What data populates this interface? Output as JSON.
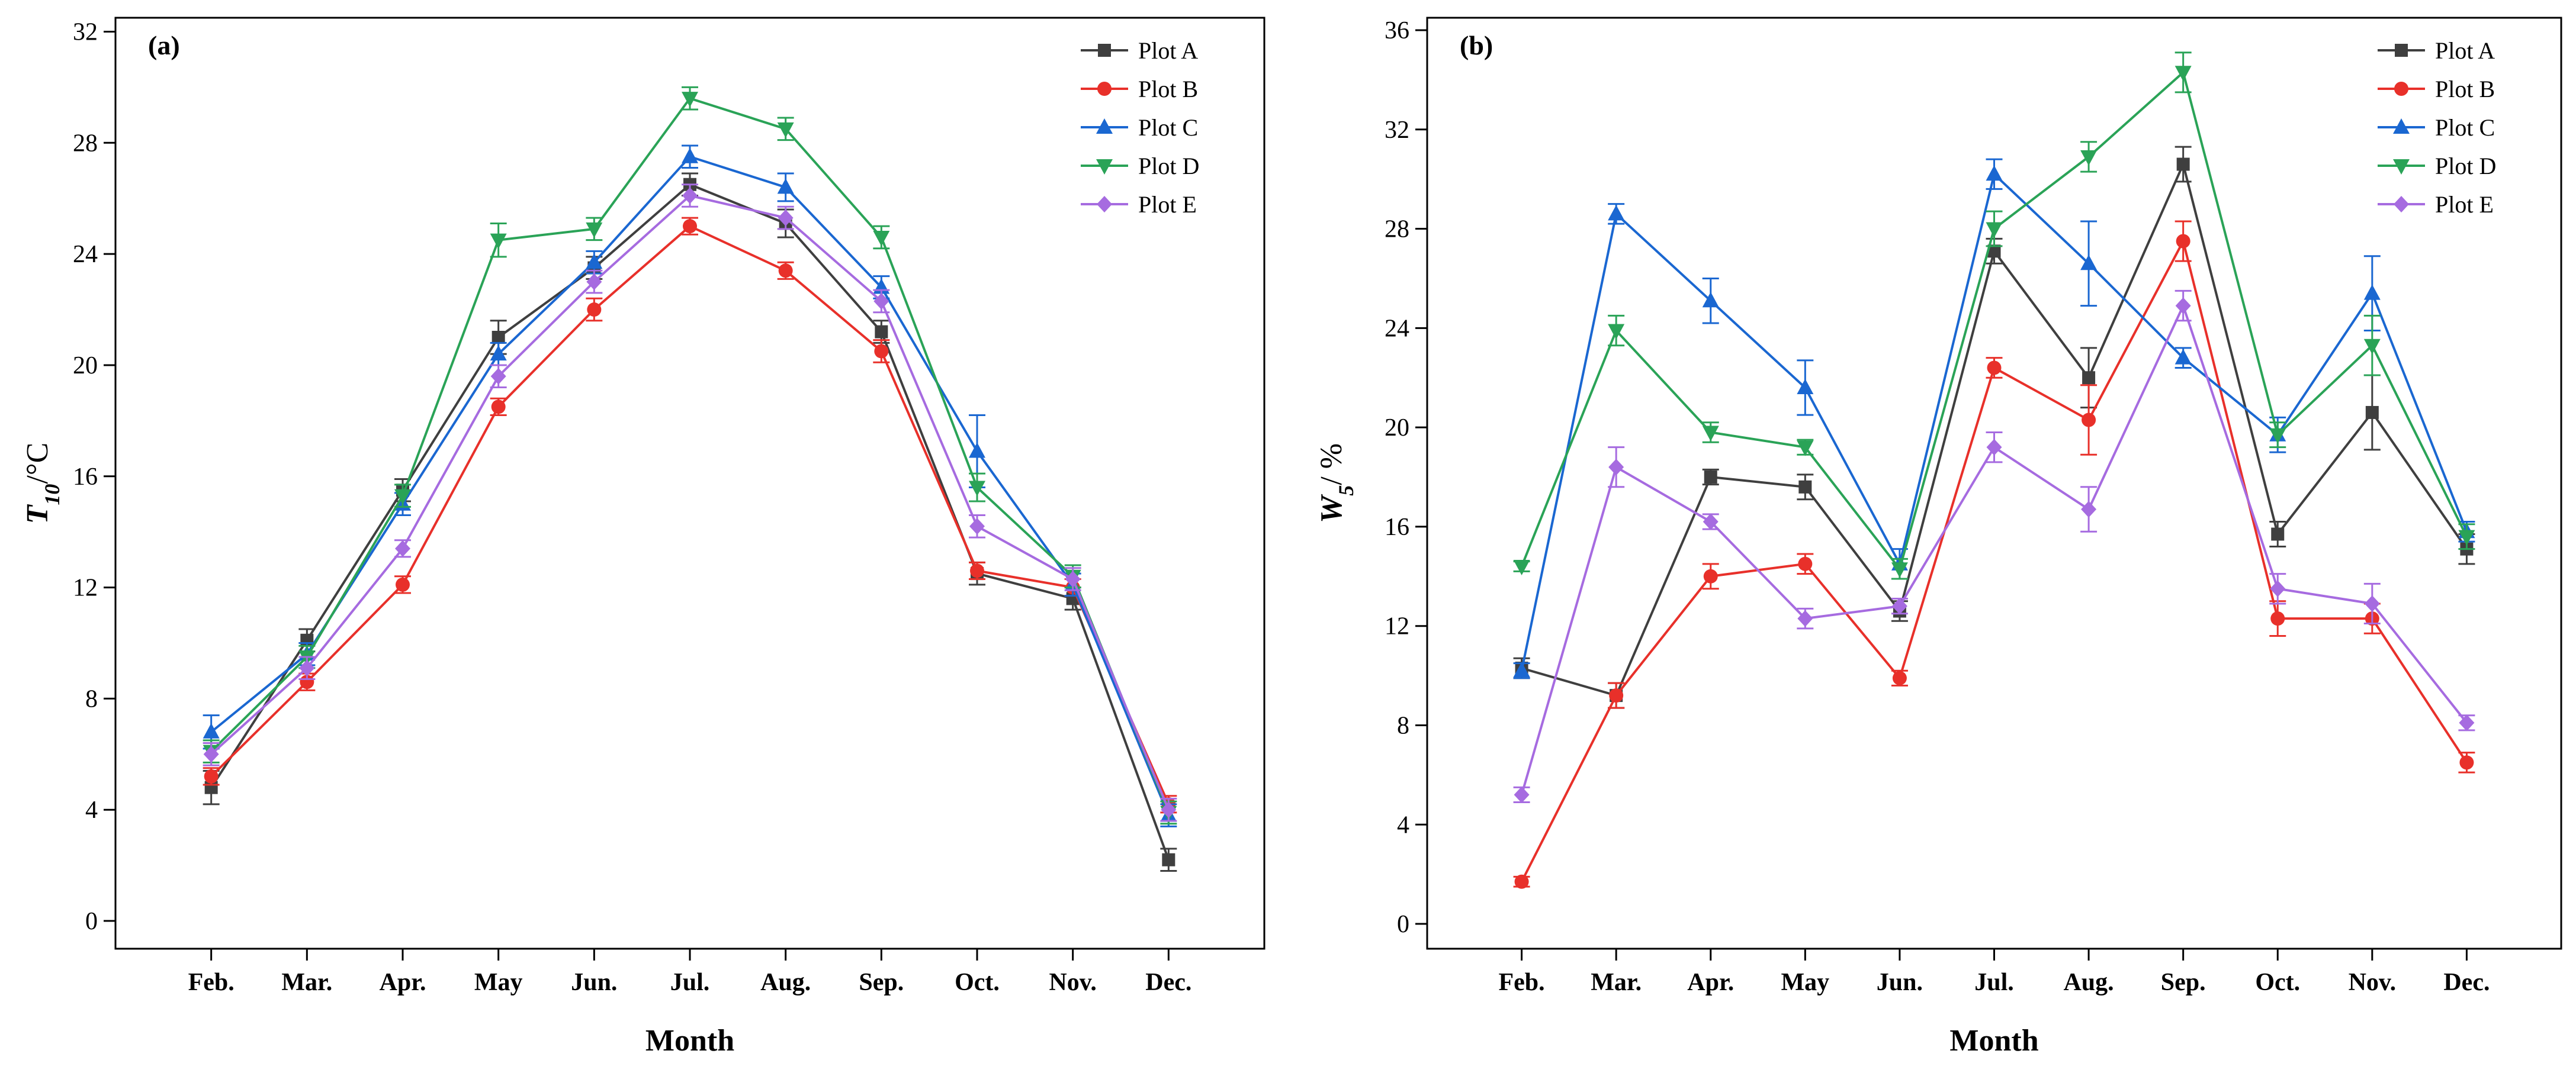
{
  "chart_data": [
    {
      "type": "line",
      "panel_label": "(a)",
      "xlabel": "Month",
      "ylabel_main": "T",
      "ylabel_sub": "10",
      "ylabel_unit": "/°C",
      "ylim": [
        -1,
        32.5
      ],
      "yticks": [
        "0",
        "4",
        "8",
        "12",
        "16",
        "20",
        "24",
        "28",
        "32"
      ],
      "categories": [
        "Feb.",
        "Mar.",
        "Apr.",
        "May",
        "Jun.",
        "Jul.",
        "Aug.",
        "Sep.",
        "Oct.",
        "Nov.",
        "Dec."
      ],
      "legend_position": "top-right",
      "series": [
        {
          "name": "Plot A",
          "color": "#3f3f3f",
          "marker": "square",
          "values": [
            4.8,
            10.1,
            15.5,
            21.0,
            23.5,
            26.5,
            25.1,
            21.2,
            12.5,
            11.6,
            2.2
          ],
          "errors": [
            0.6,
            0.4,
            0.4,
            0.6,
            0.4,
            0.4,
            0.5,
            0.4,
            0.4,
            0.4,
            0.4
          ]
        },
        {
          "name": "Plot B",
          "color": "#e8302a",
          "marker": "circle",
          "values": [
            5.2,
            8.6,
            12.1,
            18.5,
            22.0,
            25.0,
            23.4,
            20.5,
            12.6,
            12.0,
            4.2
          ],
          "errors": [
            0.3,
            0.3,
            0.3,
            0.3,
            0.4,
            0.3,
            0.3,
            0.4,
            0.3,
            0.3,
            0.3
          ]
        },
        {
          "name": "Plot C",
          "color": "#1a67d1",
          "marker": "triangle-up",
          "values": [
            6.8,
            9.6,
            15.0,
            20.4,
            23.7,
            27.5,
            26.4,
            22.8,
            16.9,
            12.1,
            3.8
          ],
          "errors": [
            0.6,
            0.4,
            0.4,
            0.4,
            0.4,
            0.4,
            0.5,
            0.4,
            1.3,
            0.4,
            0.4
          ]
        },
        {
          "name": "Plot D",
          "color": "#2aa357",
          "marker": "triangle-down",
          "values": [
            6.1,
            9.5,
            15.3,
            24.5,
            24.9,
            29.6,
            28.5,
            24.6,
            15.6,
            12.4,
            3.9
          ],
          "errors": [
            0.4,
            0.4,
            0.4,
            0.6,
            0.4,
            0.4,
            0.4,
            0.4,
            0.5,
            0.4,
            0.4
          ]
        },
        {
          "name": "Plot E",
          "color": "#a66be0",
          "marker": "diamond",
          "values": [
            6.0,
            9.1,
            13.4,
            19.6,
            23.0,
            26.1,
            25.3,
            22.3,
            14.2,
            12.3,
            4.0
          ],
          "errors": [
            0.4,
            0.4,
            0.3,
            0.4,
            0.4,
            0.4,
            0.4,
            0.4,
            0.4,
            0.4,
            0.4
          ]
        }
      ]
    },
    {
      "type": "line",
      "panel_label": "(b)",
      "xlabel": "Month",
      "ylabel_main": "W",
      "ylabel_sub": "5",
      "ylabel_unit": "/ %",
      "ylim": [
        -1,
        36.5
      ],
      "yticks": [
        "0",
        "4",
        "8",
        "12",
        "16",
        "20",
        "24",
        "28",
        "32",
        "36"
      ],
      "categories": [
        "Feb.",
        "Mar.",
        "Apr.",
        "May",
        "Jun.",
        "Jul.",
        "Aug.",
        "Sep.",
        "Oct.",
        "Nov.",
        "Dec."
      ],
      "legend_position": "top-right",
      "series": [
        {
          "name": "Plot A",
          "color": "#3f3f3f",
          "marker": "square",
          "values": [
            10.3,
            9.2,
            18.0,
            17.6,
            12.6,
            27.1,
            22.0,
            30.6,
            15.7,
            20.6,
            15.1
          ],
          "errors": [
            0.4,
            0.5,
            0.3,
            0.5,
            0.4,
            0.5,
            1.2,
            0.7,
            0.5,
            1.5,
            0.6
          ]
        },
        {
          "name": "Plot B",
          "color": "#e8302a",
          "marker": "circle",
          "values": [
            1.7,
            9.2,
            14.0,
            14.5,
            9.9,
            22.4,
            20.3,
            27.5,
            12.3,
            12.3,
            6.5
          ],
          "errors": [
            0.2,
            0.5,
            0.5,
            0.4,
            0.3,
            0.4,
            1.4,
            0.8,
            0.7,
            0.6,
            0.4
          ]
        },
        {
          "name": "Plot C",
          "color": "#1a67d1",
          "marker": "triangle-up",
          "values": [
            10.2,
            28.6,
            25.1,
            21.6,
            14.5,
            30.2,
            26.6,
            22.8,
            19.7,
            25.4,
            15.8
          ],
          "errors": [
            0.3,
            0.4,
            0.9,
            1.1,
            0.6,
            0.6,
            1.7,
            0.4,
            0.7,
            1.5,
            0.4
          ]
        },
        {
          "name": "Plot D",
          "color": "#2aa357",
          "marker": "triangle-down",
          "values": [
            14.4,
            23.9,
            19.8,
            19.2,
            14.3,
            28.0,
            30.9,
            34.3,
            19.7,
            23.3,
            15.6
          ],
          "errors": [
            0.2,
            0.6,
            0.4,
            0.3,
            0.4,
            0.7,
            0.6,
            0.8,
            0.5,
            1.2,
            0.5
          ]
        },
        {
          "name": "Plot E",
          "color": "#a66be0",
          "marker": "diamond",
          "values": [
            5.2,
            18.4,
            16.2,
            12.3,
            12.8,
            19.2,
            16.7,
            24.9,
            13.5,
            12.9,
            8.1
          ],
          "errors": [
            0.3,
            0.8,
            0.3,
            0.4,
            0.3,
            0.6,
            0.9,
            0.6,
            0.6,
            0.8,
            0.3
          ]
        }
      ]
    }
  ]
}
